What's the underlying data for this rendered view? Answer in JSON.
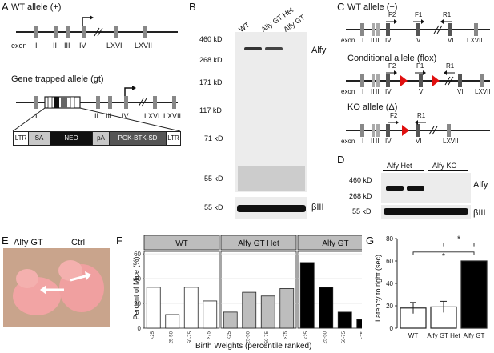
{
  "panels": {
    "A": {
      "letter": "A",
      "wt_title": "WT allele (+)",
      "exon_word": "exon",
      "wt_exons": [
        "I",
        "II",
        "III",
        "IV",
        "LXVI",
        "LXVII"
      ],
      "gt_title": "Gene trapped allele (gt)",
      "gt_exons": [
        "I",
        "II",
        "III",
        "IV",
        "LXVI",
        "LXVII"
      ],
      "cassette": [
        "LTR",
        "SA",
        "NEO",
        "pA",
        "PGK-BTK-SD",
        "LTR"
      ]
    },
    "B": {
      "letter": "B",
      "lanes": [
        "WT",
        "Alfy GT Het",
        "Alfy GT"
      ],
      "markers": [
        "460 kD",
        "268 kD",
        "171 kD",
        "117 kD",
        "71 kD",
        "55 kD"
      ],
      "protein": "Alfy",
      "loading_marker": "55 kD",
      "loading_label": "βIII"
    },
    "C": {
      "letter": "C",
      "wt_title": "WT allele (+)",
      "flox_title": "Conditional allele (flox)",
      "ko_title": "KO allele (Δ)",
      "exon_word": "exon",
      "wt_exons": [
        "I",
        "II",
        "III",
        "IV",
        "V",
        "VI",
        "LXVII"
      ],
      "flox_exons": [
        "I",
        "II",
        "III",
        "IV",
        "V",
        "VI",
        "LXVII"
      ],
      "ko_exons": [
        "I",
        "II",
        "III",
        "IV",
        "VI",
        "LXVII"
      ],
      "wt_primers": [
        "F2",
        "F1",
        "R1"
      ],
      "flox_primers": [
        "F2",
        "F1",
        "R1"
      ],
      "ko_primers": [
        "F2",
        "R1"
      ]
    },
    "D": {
      "letter": "D",
      "groups": [
        "Alfy Het",
        "Alfy KO"
      ],
      "markers": [
        "460 kD",
        "268 kD"
      ],
      "protein": "Alfy",
      "loading_marker": "55 kD",
      "loading_label": "βIII"
    },
    "E": {
      "letter": "E",
      "labels": [
        "Alfy GT",
        "Ctrl"
      ]
    },
    "F": {
      "letter": "F",
      "ylabel": "Percent of Mice (%)",
      "xlabel": "Birth Weights (percentile ranked)",
      "facets": [
        "WT",
        "Alfy GT Het",
        "Alfy GT"
      ],
      "yticks": [
        "0",
        "20",
        "40",
        "60"
      ]
    },
    "G": {
      "letter": "G",
      "ylabel": "Latency to right (sec)",
      "yticks": [
        "0",
        "20",
        "40",
        "60",
        "80"
      ],
      "sig": [
        "*",
        "*"
      ]
    }
  },
  "chart_data": [
    {
      "type": "bar",
      "title": "",
      "facets": [
        "WT",
        "Alfy GT Het",
        "Alfy GT"
      ],
      "categories": [
        "<25",
        "25-50",
        "50-75",
        ">75"
      ],
      "series": [
        {
          "name": "WT",
          "values": [
            33,
            11,
            33,
            22
          ],
          "color": "#ffffff"
        },
        {
          "name": "Alfy GT Het",
          "values": [
            13,
            29,
            26,
            32
          ],
          "color": "#bdbdbd"
        },
        {
          "name": "Alfy GT",
          "values": [
            53,
            33,
            13,
            7
          ],
          "color": "#000000"
        }
      ],
      "xlabel": "Birth Weights (percentile ranked)",
      "ylabel": "Percent of Mice (%)",
      "ylim": [
        0,
        62
      ],
      "grid": true
    },
    {
      "type": "bar",
      "title": "",
      "categories": [
        "WT",
        "Alfy GT Het",
        "Alfy GT"
      ],
      "values": [
        18,
        19,
        60
      ],
      "errors": [
        5,
        5,
        0
      ],
      "colors": [
        "#ffffff",
        "#ffffff",
        "#000000"
      ],
      "xlabel": "",
      "ylabel": "Latency to right (sec)",
      "ylim": [
        0,
        80
      ]
    }
  ]
}
